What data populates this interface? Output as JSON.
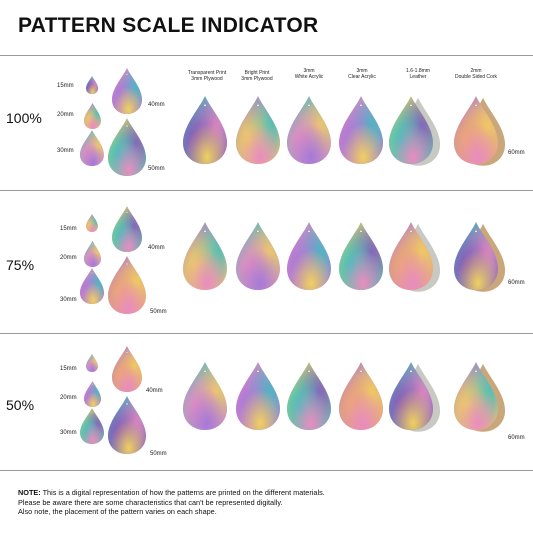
{
  "title": "PATTERN SCALE INDICATOR",
  "sizes": {
    "s15": "15mm",
    "s20": "20mm",
    "s30": "30mm",
    "s40": "40mm",
    "s50": "50mm",
    "s60": "60mm"
  },
  "materials": [
    {
      "line1": "Transparent Print",
      "line2": "3mm Plywood"
    },
    {
      "line1": "Bright Print",
      "line2": "3mm Plywood"
    },
    {
      "line1": "3mm",
      "line2": "White Acrylic"
    },
    {
      "line1": "3mm",
      "line2": "Clear Acrylic"
    },
    {
      "line1": "1.6-1.8mm",
      "line2": "Leather"
    },
    {
      "line1": "2mm",
      "line2": "Double Sided Cork"
    }
  ],
  "sections": [
    {
      "percent": "100%"
    },
    {
      "percent": "75%"
    },
    {
      "percent": "50%"
    }
  ],
  "note": {
    "label": "NOTE:",
    "line1": " This is a digital representation of how the patterns are printed on the different materials.",
    "line2": "Please be aware there are some characteristics that can't be represented digitally.",
    "line3": "Also note, the placement of the pattern varies on each shape."
  },
  "colors": {
    "purple": "#8e56b8",
    "violet": "#a878d8",
    "teal": "#3fbfc0",
    "yellow": "#f0d060",
    "pink": "#e98cc0",
    "orange": "#f0a870",
    "leather": "#c9c9c3",
    "cork": "#c9a77a",
    "wood": "#b98b6a"
  }
}
